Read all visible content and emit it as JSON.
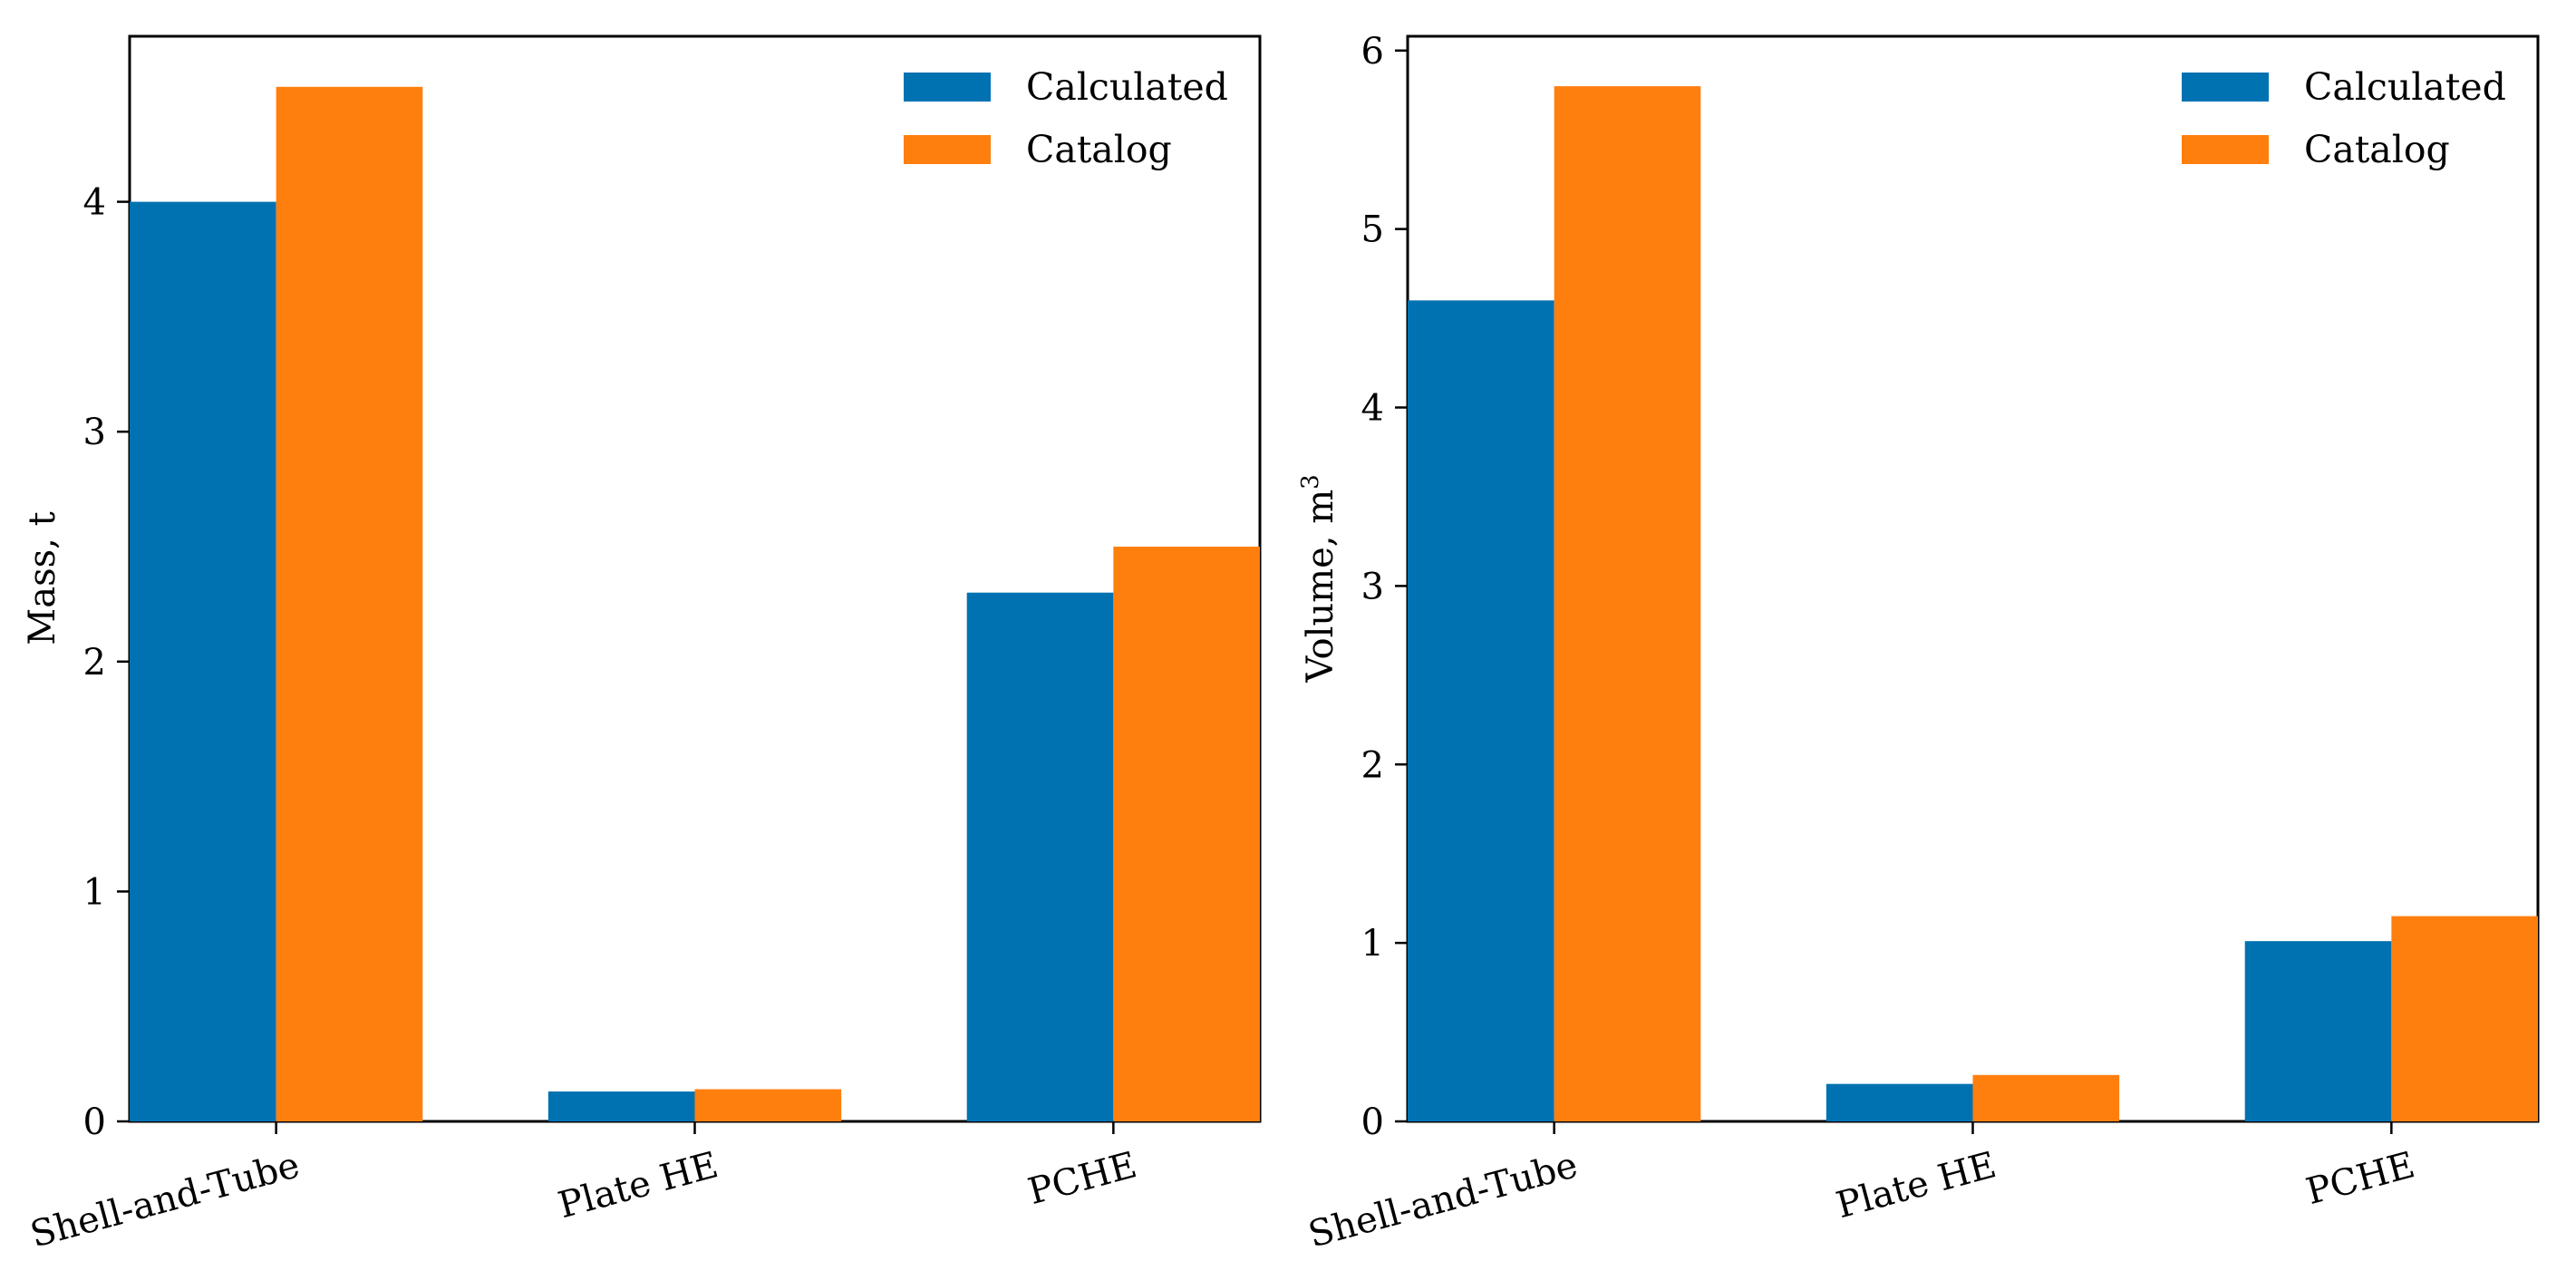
{
  "colors": {
    "calculated": "#0072b2",
    "catalog": "#ff7f0e"
  },
  "chart_data": [
    {
      "type": "bar",
      "title": "",
      "xlabel": "",
      "ylabel": "Mass, t",
      "categories": [
        "Shell-and-Tube",
        "Plate HE",
        "PCHE"
      ],
      "series": [
        {
          "name": "Calculated",
          "values": [
            4.0,
            0.13,
            2.3
          ]
        },
        {
          "name": "Catalog",
          "values": [
            4.5,
            0.14,
            2.5
          ]
        }
      ],
      "ylim": [
        0,
        4.72
      ],
      "yticks": [
        0,
        1,
        2,
        3,
        4
      ],
      "ytick_labels": [
        "0",
        "1",
        "2",
        "3",
        "4"
      ],
      "legend": {
        "position": "top-right",
        "entries": [
          "Calculated",
          "Catalog"
        ]
      }
    },
    {
      "type": "bar",
      "title": "",
      "xlabel": "",
      "ylabel": "Volume, m",
      "ylabel_sup": "3",
      "categories": [
        "Shell-and-Tube",
        "Plate HE",
        "PCHE"
      ],
      "series": [
        {
          "name": "Calculated",
          "values": [
            4.6,
            0.21,
            1.01
          ]
        },
        {
          "name": "Catalog",
          "values": [
            5.8,
            0.26,
            1.15
          ]
        }
      ],
      "ylim": [
        0,
        6.08
      ],
      "yticks": [
        0,
        1,
        2,
        3,
        4,
        5,
        6
      ],
      "ytick_labels": [
        "0",
        "1",
        "2",
        "3",
        "4",
        "5",
        "6"
      ],
      "legend": {
        "position": "top-right",
        "entries": [
          "Calculated",
          "Catalog"
        ]
      }
    }
  ]
}
